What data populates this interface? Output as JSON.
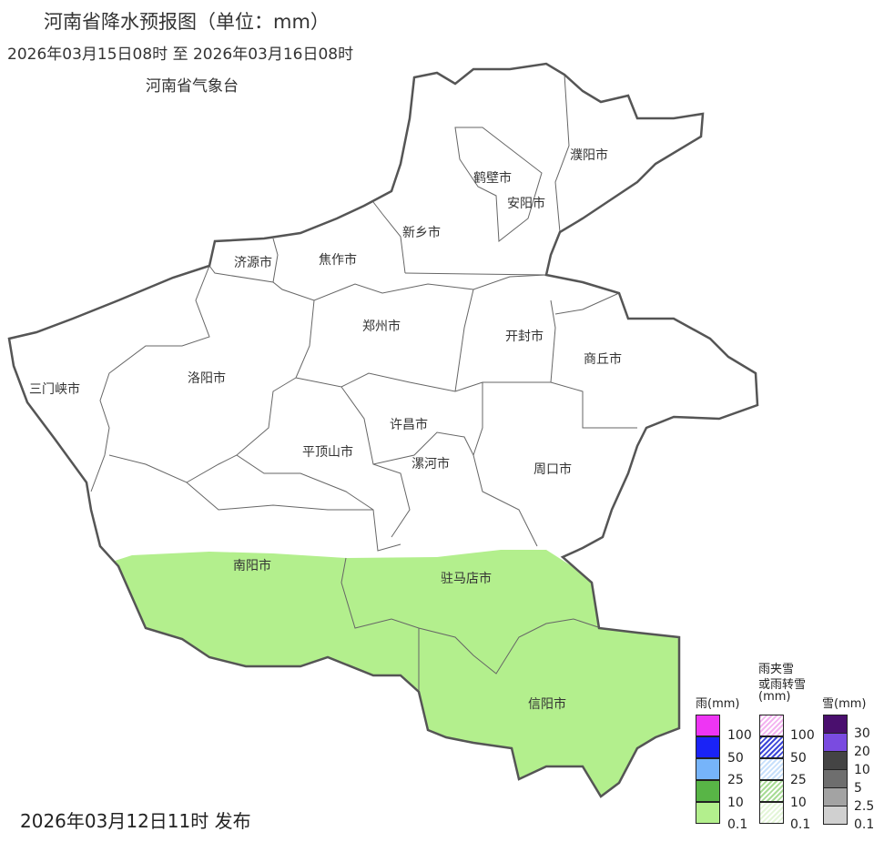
{
  "header": {
    "title": "河南省降水预报图（单位：mm）",
    "period": "2026年03月15日08时  至  2026年03月16日08时",
    "agency": "河南省气象台"
  },
  "footer": {
    "issued": "2026年03月12日11时 发布"
  },
  "map": {
    "colors": {
      "border": "#555555",
      "rain_0_1_to_10": "#b3ef8d",
      "background": "#ffffff"
    },
    "cities": [
      "濮阳市",
      "鹤壁市",
      "安阳市",
      "新乡市",
      "济源市",
      "焦作市",
      "郑州市",
      "开封市",
      "商丘市",
      "三门峡市",
      "洛阳市",
      "许昌市",
      "平顶山市",
      "漯河市",
      "周口市",
      "南阳市",
      "驻马店市",
      "信阳市"
    ],
    "rain_area_cities": [
      "南阳市",
      "驻马店市",
      "信阳市"
    ]
  },
  "legend": {
    "rain": {
      "title": "雨(mm)",
      "labels": [
        "100",
        "50",
        "25",
        "10",
        "0.1"
      ],
      "colors": [
        "#ee35f4",
        "#1a23f6",
        "#76b4fa",
        "#58b546",
        "#b3ef8d"
      ]
    },
    "mixed": {
      "title_line1": "雨夹雪",
      "title_line2": "或雨转雪",
      "title_line3": "(mm)",
      "labels": [
        "100",
        "50",
        "25",
        "10",
        "0.1"
      ],
      "colors": [
        "#f3b3f0",
        "#3b45d8",
        "#c7e0fb",
        "#a8dc96",
        "#e4f6d8"
      ]
    },
    "snow": {
      "title": "雪(mm)",
      "labels": [
        "30",
        "20",
        "10",
        "5",
        "2.5",
        "0.1"
      ],
      "colors": [
        "#4a0f6e",
        "#7a4be0",
        "#444444",
        "#6e6e6e",
        "#a3a3a3",
        "#d0d0d0"
      ]
    }
  }
}
